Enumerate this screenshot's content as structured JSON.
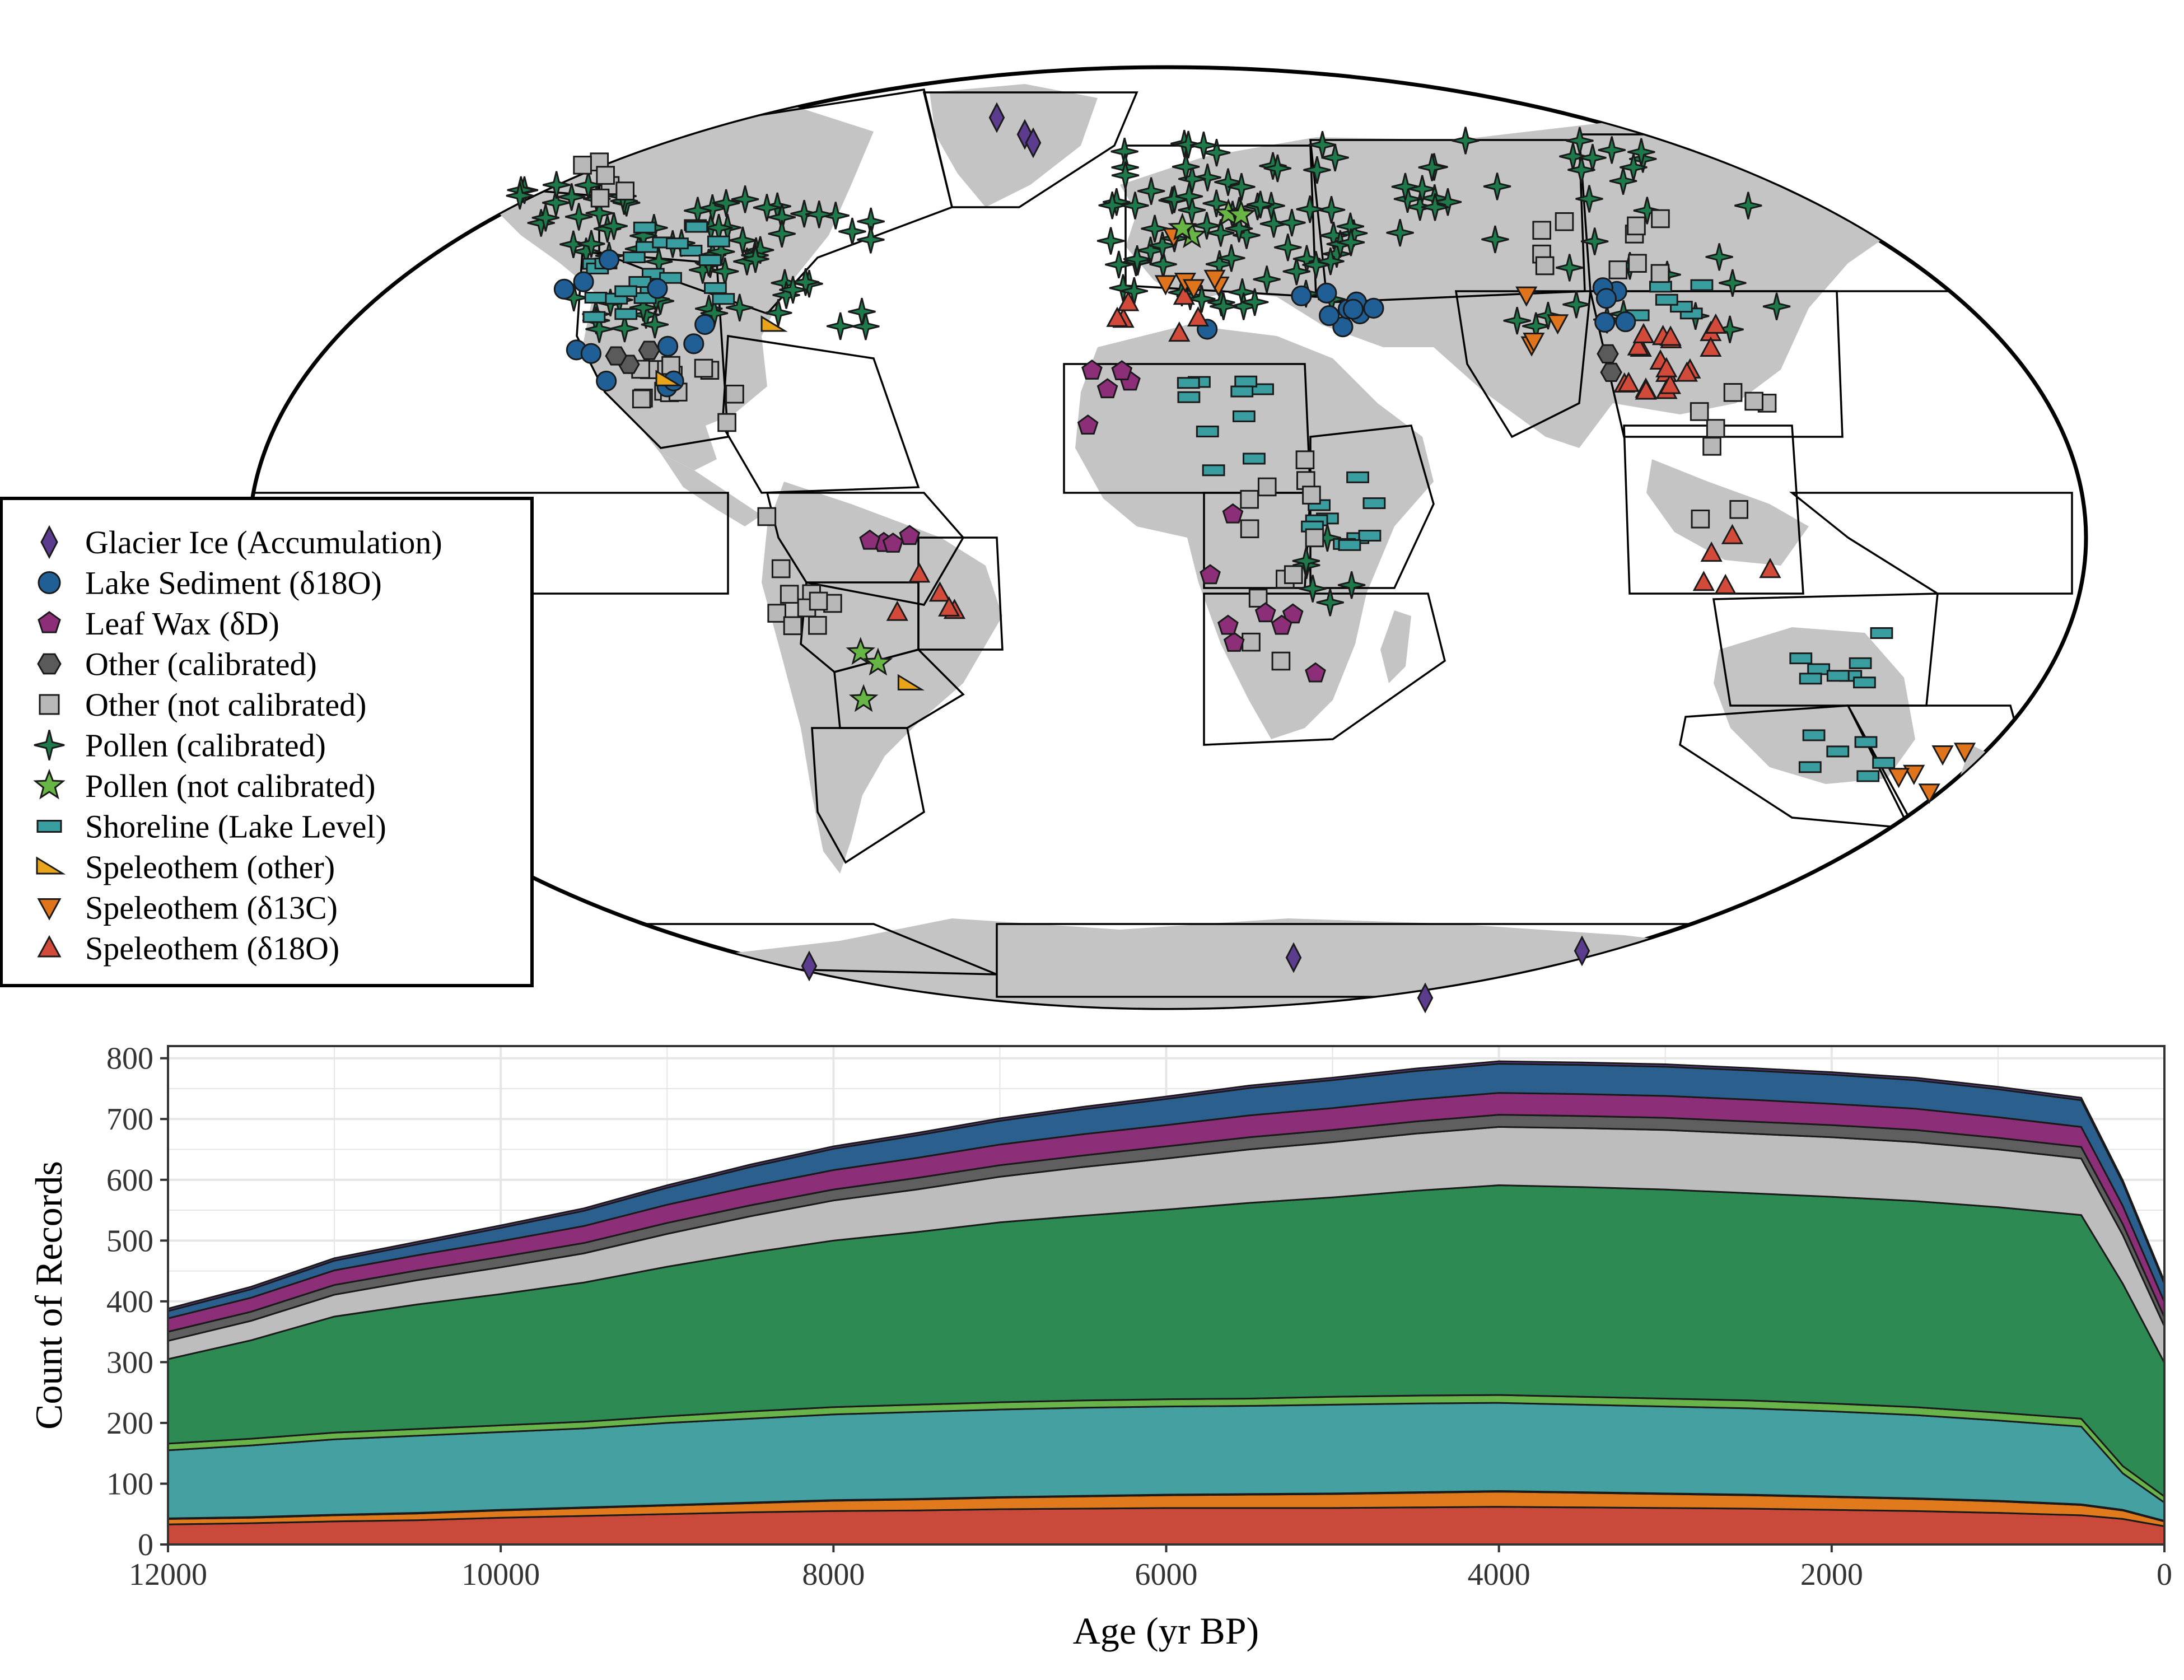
{
  "legend": {
    "items": [
      {
        "label": "Glacier Ice (Accumulation)",
        "shape": "diamond",
        "color": "#5b3c8f"
      },
      {
        "label": "Lake Sediment (δ18O)",
        "shape": "circle",
        "color": "#1f5f96"
      },
      {
        "label": "Leaf Wax (δD)",
        "shape": "pentagon",
        "color": "#8c2f78"
      },
      {
        "label": "Other (calibrated)",
        "shape": "hexagon",
        "color": "#5a5a5a"
      },
      {
        "label": "Other (not calibrated)",
        "shape": "square",
        "color": "#b8b8b8"
      },
      {
        "label": "Pollen (calibrated)",
        "shape": "star4",
        "color": "#1e7a4a"
      },
      {
        "label": "Pollen (not calibrated)",
        "shape": "star5",
        "color": "#66b545"
      },
      {
        "label": "Shoreline (Lake Level)",
        "shape": "rect",
        "color": "#3a9ea0"
      },
      {
        "label": "Speleothem (other)",
        "shape": "wedge",
        "color": "#e8a51c"
      },
      {
        "label": "Speleothem (δ13C)",
        "shape": "tri-down",
        "color": "#e0741c"
      },
      {
        "label": "Speleothem (δ18O)",
        "shape": "tri-up",
        "color": "#d24a3a"
      }
    ]
  },
  "map": {
    "land_color": "#c4c4c4",
    "region_line_color": "#000000"
  },
  "chart_data": {
    "type": "area",
    "stacked": true,
    "xlabel": "Age (yr BP)",
    "ylabel": "Count of Records",
    "xlim": [
      12000,
      0
    ],
    "ylim": [
      0,
      820
    ],
    "x_reversed": true,
    "x_ticks": [
      "12000",
      "10000",
      "8000",
      "6000",
      "4000",
      "2000",
      "0"
    ],
    "y_ticks": [
      "0",
      "100",
      "200",
      "300",
      "400",
      "500",
      "600",
      "700",
      "800"
    ],
    "grid": true,
    "x": [
      12000,
      11500,
      11000,
      10500,
      10000,
      9500,
      9000,
      8500,
      8000,
      7500,
      7000,
      6500,
      6000,
      5500,
      5000,
      4500,
      4000,
      3500,
      3000,
      2500,
      2000,
      1500,
      1000,
      500,
      250,
      0
    ],
    "series": [
      {
        "name": "Speleothem (δ18O)",
        "color": "#c9493a",
        "values": [
          33,
          35,
          38,
          40,
          44,
          47,
          50,
          53,
          55,
          56,
          58,
          59,
          60,
          60,
          60,
          61,
          62,
          61,
          60,
          59,
          57,
          55,
          52,
          48,
          42,
          30
        ]
      },
      {
        "name": "Speleothem (δ13C)",
        "color": "#e07a1c",
        "values": [
          9,
          9,
          10,
          11,
          12,
          13,
          14,
          15,
          17,
          18,
          19,
          20,
          21,
          22,
          23,
          24,
          25,
          24,
          23,
          22,
          21,
          20,
          19,
          17,
          14,
          8
        ]
      },
      {
        "name": "Speleothem (other)",
        "color": "#e8a51c",
        "values": [
          1,
          1,
          1,
          1,
          1,
          1,
          1,
          1,
          1,
          1,
          1,
          1,
          1,
          1,
          1,
          1,
          1,
          1,
          1,
          1,
          1,
          1,
          1,
          1,
          1,
          1
        ]
      },
      {
        "name": "Shoreline (Lake Level)",
        "color": "#45a0a2",
        "values": [
          112,
          118,
          124,
          127,
          128,
          130,
          135,
          138,
          141,
          143,
          144,
          145,
          145,
          145,
          146,
          146,
          145,
          144,
          143,
          142,
          140,
          137,
          132,
          128,
          60,
          30
        ]
      },
      {
        "name": "Pollen (not calibrated)",
        "color": "#69b44a",
        "values": [
          11,
          11,
          11,
          11,
          11,
          11,
          11,
          12,
          12,
          12,
          12,
          12,
          12,
          12,
          13,
          13,
          13,
          13,
          13,
          13,
          13,
          13,
          13,
          13,
          12,
          10
        ]
      },
      {
        "name": "Pollen (calibrated)",
        "color": "#2d8a52",
        "values": [
          139,
          162,
          191,
          205,
          216,
          229,
          246,
          261,
          274,
          284,
          296,
          304,
          312,
          322,
          328,
          337,
          345,
          345,
          344,
          341,
          340,
          339,
          338,
          335,
          300,
          220
        ]
      },
      {
        "name": "Other (not calibrated)",
        "color": "#bdbdbd",
        "values": [
          30,
          32,
          36,
          40,
          44,
          48,
          54,
          60,
          66,
          70,
          75,
          80,
          84,
          88,
          91,
          94,
          96,
          97,
          98,
          98,
          98,
          97,
          95,
          93,
          80,
          60
        ]
      },
      {
        "name": "Other (calibrated)",
        "color": "#5f5f5f",
        "values": [
          15,
          15,
          16,
          16,
          17,
          17,
          18,
          18,
          18,
          19,
          19,
          19,
          20,
          20,
          20,
          20,
          20,
          20,
          20,
          20,
          20,
          20,
          19,
          19,
          18,
          15
        ]
      },
      {
        "name": "Leaf Wax (δD)",
        "color": "#8c2f78",
        "values": [
          22,
          23,
          24,
          25,
          26,
          28,
          30,
          31,
          32,
          33,
          34,
          35,
          35,
          36,
          36,
          36,
          36,
          36,
          36,
          36,
          35,
          35,
          34,
          33,
          30,
          25
        ]
      },
      {
        "name": "Lake Sediment (δ18O)",
        "color": "#2a5f8e",
        "values": [
          12,
          14,
          16,
          18,
          22,
          25,
          28,
          32,
          35,
          37,
          39,
          41,
          43,
          45,
          46,
          47,
          48,
          48,
          48,
          48,
          48,
          47,
          46,
          44,
          38,
          30
        ]
      },
      {
        "name": "Glacier Ice (Accumulation)",
        "color": "#5b3c8f",
        "values": [
          4,
          4,
          4,
          4,
          4,
          4,
          4,
          4,
          4,
          4,
          4,
          4,
          4,
          4,
          4,
          4,
          4,
          4,
          4,
          4,
          4,
          4,
          4,
          4,
          4,
          4
        ]
      }
    ]
  }
}
